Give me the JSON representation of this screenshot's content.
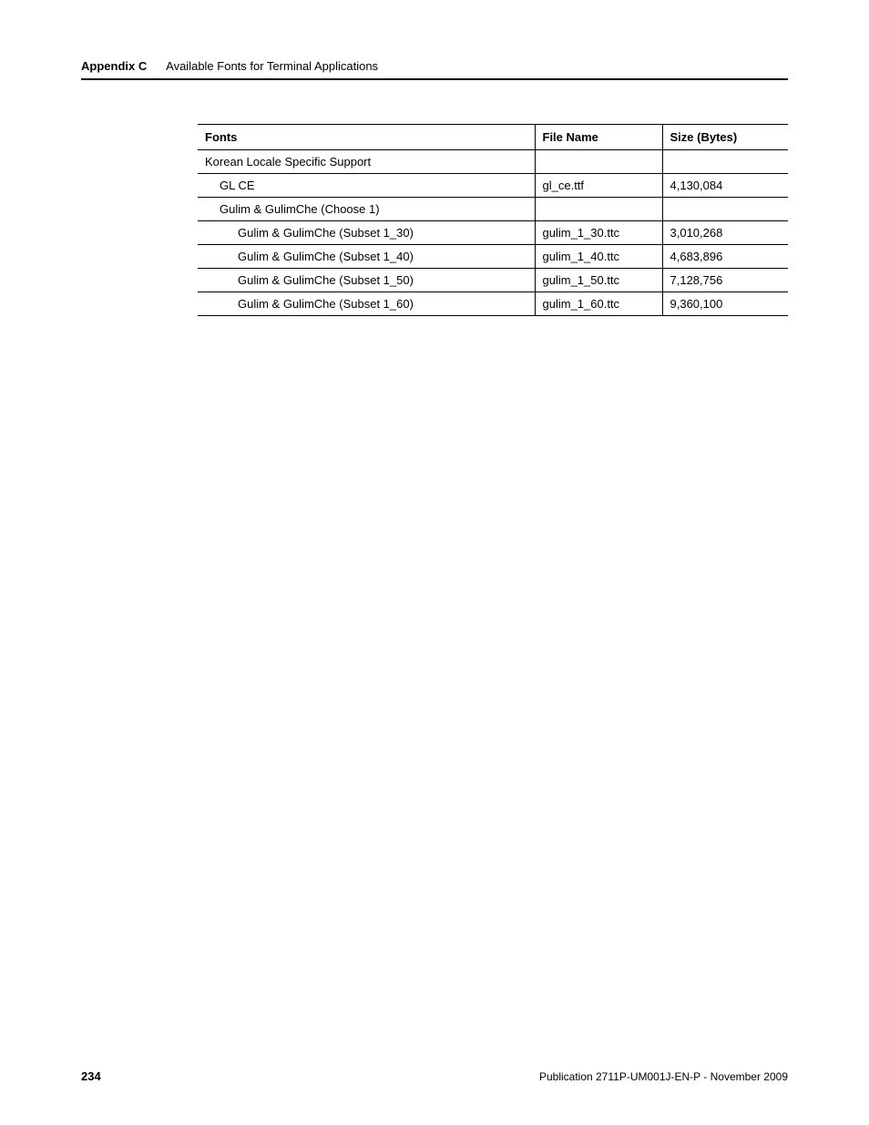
{
  "header": {
    "label": "Appendix C",
    "title": "Available Fonts for Terminal Applications"
  },
  "table": {
    "columns": [
      "Fonts",
      "File Name",
      "Size (Bytes)"
    ],
    "rows": [
      {
        "indent": 0,
        "fonts": "Korean Locale Specific Support",
        "file": "",
        "size": ""
      },
      {
        "indent": 1,
        "fonts": "GL CE",
        "file": "gl_ce.ttf",
        "size": "4,130,084"
      },
      {
        "indent": 1,
        "fonts": "Gulim & GulimChe (Choose 1)",
        "file": "",
        "size": ""
      },
      {
        "indent": 2,
        "fonts": "Gulim & GulimChe (Subset 1_30)",
        "file": "gulim_1_30.ttc",
        "size": "3,010,268"
      },
      {
        "indent": 2,
        "fonts": "Gulim & GulimChe (Subset 1_40)",
        "file": "gulim_1_40.ttc",
        "size": "4,683,896"
      },
      {
        "indent": 2,
        "fonts": "Gulim & GulimChe (Subset 1_50)",
        "file": "gulim_1_50.ttc",
        "size": "7,128,756"
      },
      {
        "indent": 2,
        "fonts": "Gulim & GulimChe (Subset 1_60)",
        "file": "gulim_1_60.ttc",
        "size": "9,360,100"
      }
    ]
  },
  "footer": {
    "page_number": "234",
    "publication": "Publication 2711P-UM001J-EN-P - November 2009"
  }
}
